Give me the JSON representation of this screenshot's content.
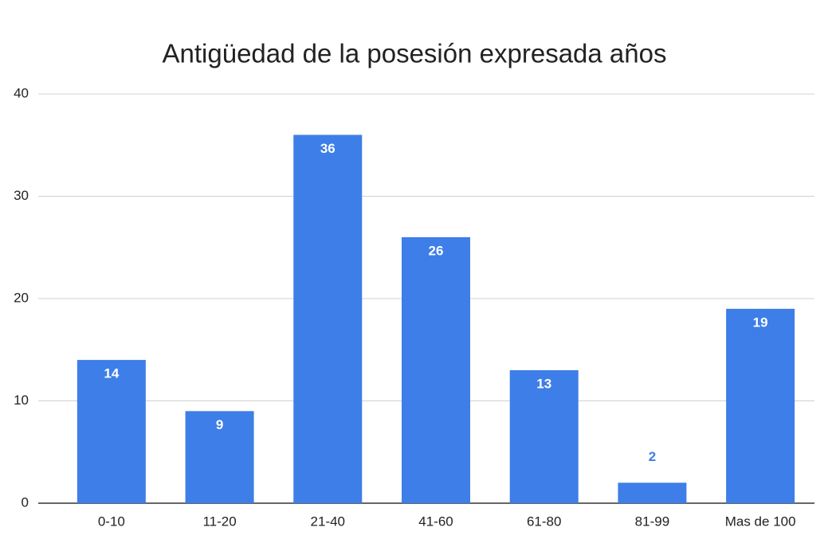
{
  "chart_data": {
    "type": "bar",
    "title": "Antigüedad de la posesión expresada años",
    "categories": [
      "0-10",
      "11-20",
      "21-40",
      "41-60",
      "61-80",
      "81-99",
      "Mas de 100"
    ],
    "values": [
      14,
      9,
      36,
      26,
      13,
      2,
      19
    ],
    "color": "#3d7ee8",
    "ylim": [
      0,
      40
    ],
    "yticks": [
      0,
      10,
      20,
      30,
      40
    ],
    "grid": true
  }
}
